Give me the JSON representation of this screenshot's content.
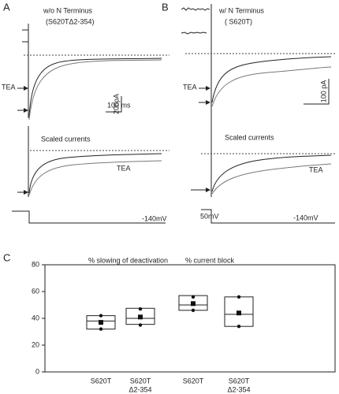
{
  "panels": {
    "A": {
      "label": "A",
      "title": "w/o  N Terminus",
      "subtitle": "(S620TΔ2-354)",
      "tea_top": "TEA",
      "scale_current": "200pA",
      "scale_time": "100 ms",
      "scaled_title": "Scaled currents",
      "tea_bottom": "TEA",
      "voltage": "-140mV"
    },
    "B": {
      "label": "B",
      "title": "w/  N Terminus",
      "subtitle": "( S620T)",
      "tea_top": "TEA",
      "scale_current": "100 pA",
      "scaled_title": "Scaled currents",
      "tea_bottom": "TEA",
      "holding": "50mV",
      "voltage": "-140mV"
    }
  },
  "chart_data": {
    "type": "box",
    "label": "C",
    "annotations": [
      "% slowing of deactivation",
      "% current block"
    ],
    "categories": [
      [
        "S620T"
      ],
      [
        "S620T",
        "Δ2-354"
      ],
      [
        "S620T"
      ],
      [
        "S620T",
        "Δ2-354"
      ]
    ],
    "low": [
      32,
      35.5,
      46,
      34
    ],
    "median": [
      38,
      40,
      50,
      43
    ],
    "high": [
      42,
      47.5,
      57,
      56
    ],
    "points": [
      [
        42,
        37,
        32
      ],
      [
        47,
        41,
        35
      ],
      [
        56,
        51,
        46
      ],
      [
        56,
        44,
        34
      ]
    ],
    "ylim": [
      0,
      80
    ],
    "yticks": [
      0,
      20,
      40,
      60,
      80
    ]
  }
}
